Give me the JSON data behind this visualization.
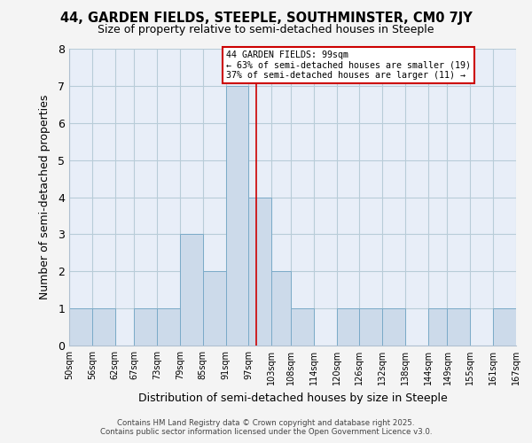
{
  "title": "44, GARDEN FIELDS, STEEPLE, SOUTHMINSTER, CM0 7JY",
  "subtitle": "Size of property relative to semi-detached houses in Steeple",
  "xlabel": "Distribution of semi-detached houses by size in Steeple",
  "ylabel": "Number of semi-detached properties",
  "bar_edges": [
    50,
    56,
    62,
    67,
    73,
    79,
    85,
    91,
    97,
    103,
    108,
    114,
    120,
    126,
    132,
    138,
    144,
    149,
    155,
    161,
    167
  ],
  "bar_heights": [
    1,
    1,
    0,
    1,
    1,
    3,
    2,
    7,
    4,
    2,
    1,
    0,
    1,
    1,
    1,
    0,
    1,
    1,
    0,
    1
  ],
  "bar_color": "#ccdaea",
  "bar_edge_color": "#7aaac8",
  "property_value": 99,
  "vline_color": "#cc0000",
  "annotation_title": "44 GARDEN FIELDS: 99sqm",
  "annotation_line1": "← 63% of semi-detached houses are smaller (19)",
  "annotation_line2": "37% of semi-detached houses are larger (11) →",
  "annotation_box_color": "#ffffff",
  "annotation_box_edgecolor": "#cc0000",
  "tick_labels": [
    "50sqm",
    "56sqm",
    "62sqm",
    "67sqm",
    "73sqm",
    "79sqm",
    "85sqm",
    "91sqm",
    "97sqm",
    "103sqm",
    "108sqm",
    "114sqm",
    "120sqm",
    "126sqm",
    "132sqm",
    "138sqm",
    "144sqm",
    "149sqm",
    "155sqm",
    "161sqm",
    "167sqm"
  ],
  "ylim": [
    0,
    8
  ],
  "yticks": [
    0,
    1,
    2,
    3,
    4,
    5,
    6,
    7,
    8
  ],
  "grid_color": "#b8ccd8",
  "bg_color": "#e8eef8",
  "footer_line1": "Contains HM Land Registry data © Crown copyright and database right 2025.",
  "footer_line2": "Contains public sector information licensed under the Open Government Licence v3.0."
}
